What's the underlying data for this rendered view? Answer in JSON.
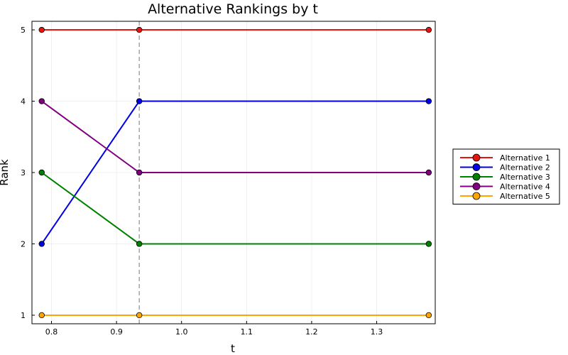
{
  "chart_data": {
    "type": "line",
    "title": "Alternative Rankings by t",
    "xlabel": "t",
    "ylabel": "Rank",
    "xlim": [
      0.77,
      1.39
    ],
    "ylim": [
      0.88,
      5.12
    ],
    "xticks": [
      0.8,
      0.9,
      1.0,
      1.1,
      1.2,
      1.3
    ],
    "xtick_labels": [
      "0.8",
      "0.9",
      "1.0",
      "1.1",
      "1.2",
      "1.3"
    ],
    "yticks": [
      1,
      2,
      3,
      4,
      5
    ],
    "ytick_labels": [
      "1",
      "2",
      "3",
      "4",
      "5"
    ],
    "grid": true,
    "legend_position": "outer-right",
    "x": [
      0.785,
      0.935,
      1.38
    ],
    "vline": {
      "x": 0.935,
      "style": "dashed",
      "color": "#9e9e9e"
    },
    "series": [
      {
        "name": "Alternative 1",
        "color": "#e6140f",
        "values": [
          5,
          5,
          5
        ]
      },
      {
        "name": "Alternative 2",
        "color": "#0000e6",
        "values": [
          2,
          4,
          4
        ]
      },
      {
        "name": "Alternative 3",
        "color": "#008000",
        "values": [
          3,
          2,
          2
        ]
      },
      {
        "name": "Alternative 4",
        "color": "#800080",
        "values": [
          4,
          3,
          3
        ]
      },
      {
        "name": "Alternative 5",
        "color": "#ffa500",
        "values": [
          1,
          1,
          1
        ]
      }
    ]
  }
}
